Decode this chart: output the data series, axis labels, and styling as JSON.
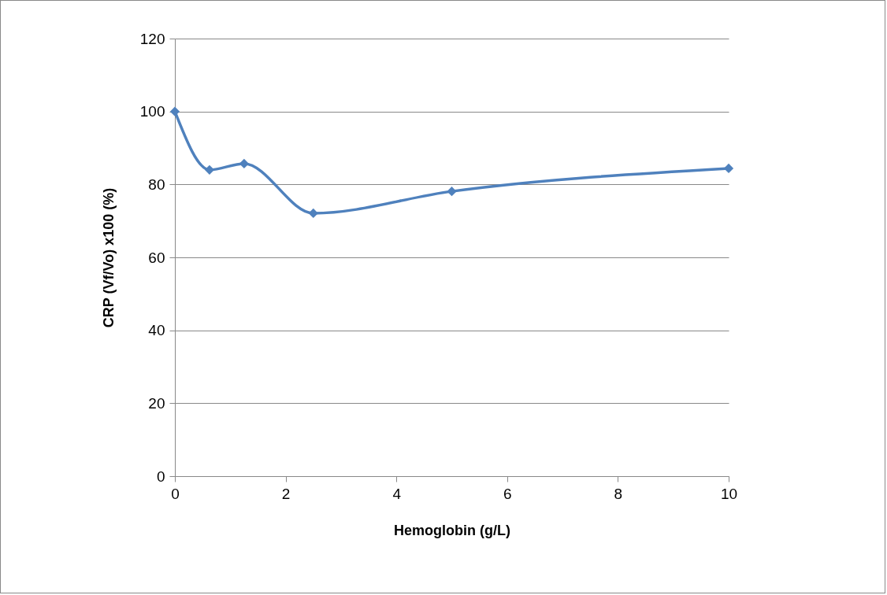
{
  "chart_data": {
    "type": "line",
    "xlabel": "Hemoglobin (g/L)",
    "ylabel": "CRP (Vf/Vo) x100 (%)",
    "x": [
      0,
      0.625,
      1.25,
      2.5,
      5,
      10
    ],
    "series": [
      {
        "color": "#4f81bd",
        "values": [
          100,
          84,
          85.7,
          72.1,
          78.1,
          84.4
        ]
      }
    ],
    "xlim": [
      0,
      10
    ],
    "xticks": [
      0,
      2,
      4,
      6,
      8,
      10
    ],
    "ylim": [
      0,
      120
    ],
    "yticks": [
      0,
      20,
      40,
      60,
      80,
      100,
      120
    ],
    "grid": "y",
    "marker": "diamond",
    "line_style": "solid"
  }
}
